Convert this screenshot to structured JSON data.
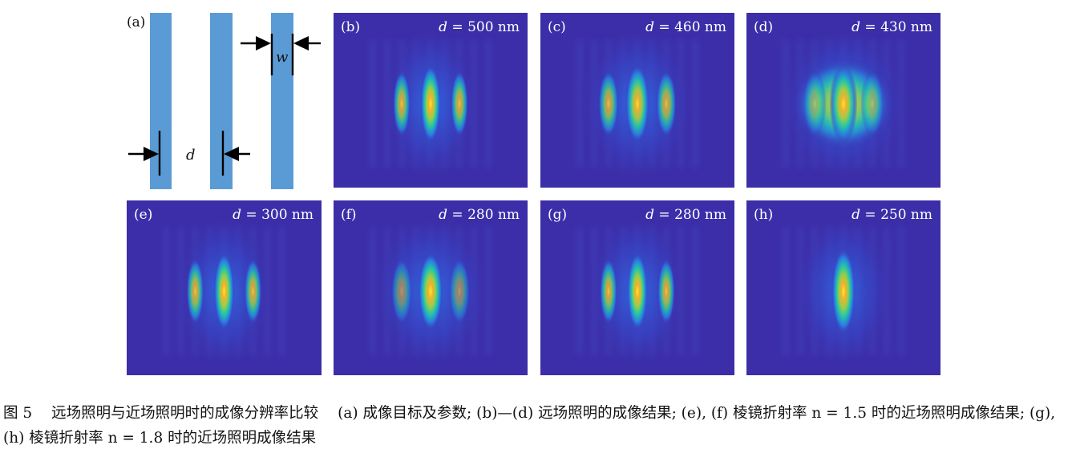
{
  "figure": {
    "panels": [
      {
        "id": "a",
        "label": "(a)",
        "type": "schematic",
        "d_symbol": "d",
        "w_symbol": "w"
      },
      {
        "id": "b",
        "label": "(b)",
        "d_value": "500",
        "unit": "nm",
        "spots": 3,
        "spread": 0.0,
        "intensity": 1.0
      },
      {
        "id": "c",
        "label": "(c)",
        "d_value": "460",
        "unit": "nm",
        "spots": 3,
        "spread": 0.45,
        "intensity": 0.95
      },
      {
        "id": "d",
        "label": "(d)",
        "d_value": "430",
        "unit": "nm",
        "spots": 3,
        "spread": 1.0,
        "intensity": 0.92
      },
      {
        "id": "e",
        "label": "(e)",
        "d_value": "300",
        "unit": "nm",
        "spots": 3,
        "spread": 0.0,
        "intensity": 1.0
      },
      {
        "id": "f",
        "label": "(f)",
        "d_value": "280",
        "unit": "nm",
        "spots": 3,
        "spread": 0.55,
        "intensity": 1.0
      },
      {
        "id": "g",
        "label": "(g)",
        "d_value": "280",
        "unit": "nm",
        "spots": 3,
        "spread": 0.0,
        "intensity": 1.0
      },
      {
        "id": "h",
        "label": "(h)",
        "d_value": "250",
        "unit": "nm",
        "spots": 1,
        "spread": 0.0,
        "intensity": 1.0
      }
    ]
  },
  "caption": {
    "number": "图 5",
    "title": "远场照明与近场照明时的成像分辨率比较",
    "body": "(a) 成像目标及参数; (b)—(d) 远场照明的成像结果; (e), (f) 棱镜折射率 n = 1.5 时的近场照明成像结果; (g), (h) 棱镜折射率 n = 1.8 时的近场照明成像结果"
  },
  "colors": {
    "background_purple": "#3c2ea8",
    "bar_blue": "#5b9bd5",
    "peak_yellow": "#f5e626"
  }
}
